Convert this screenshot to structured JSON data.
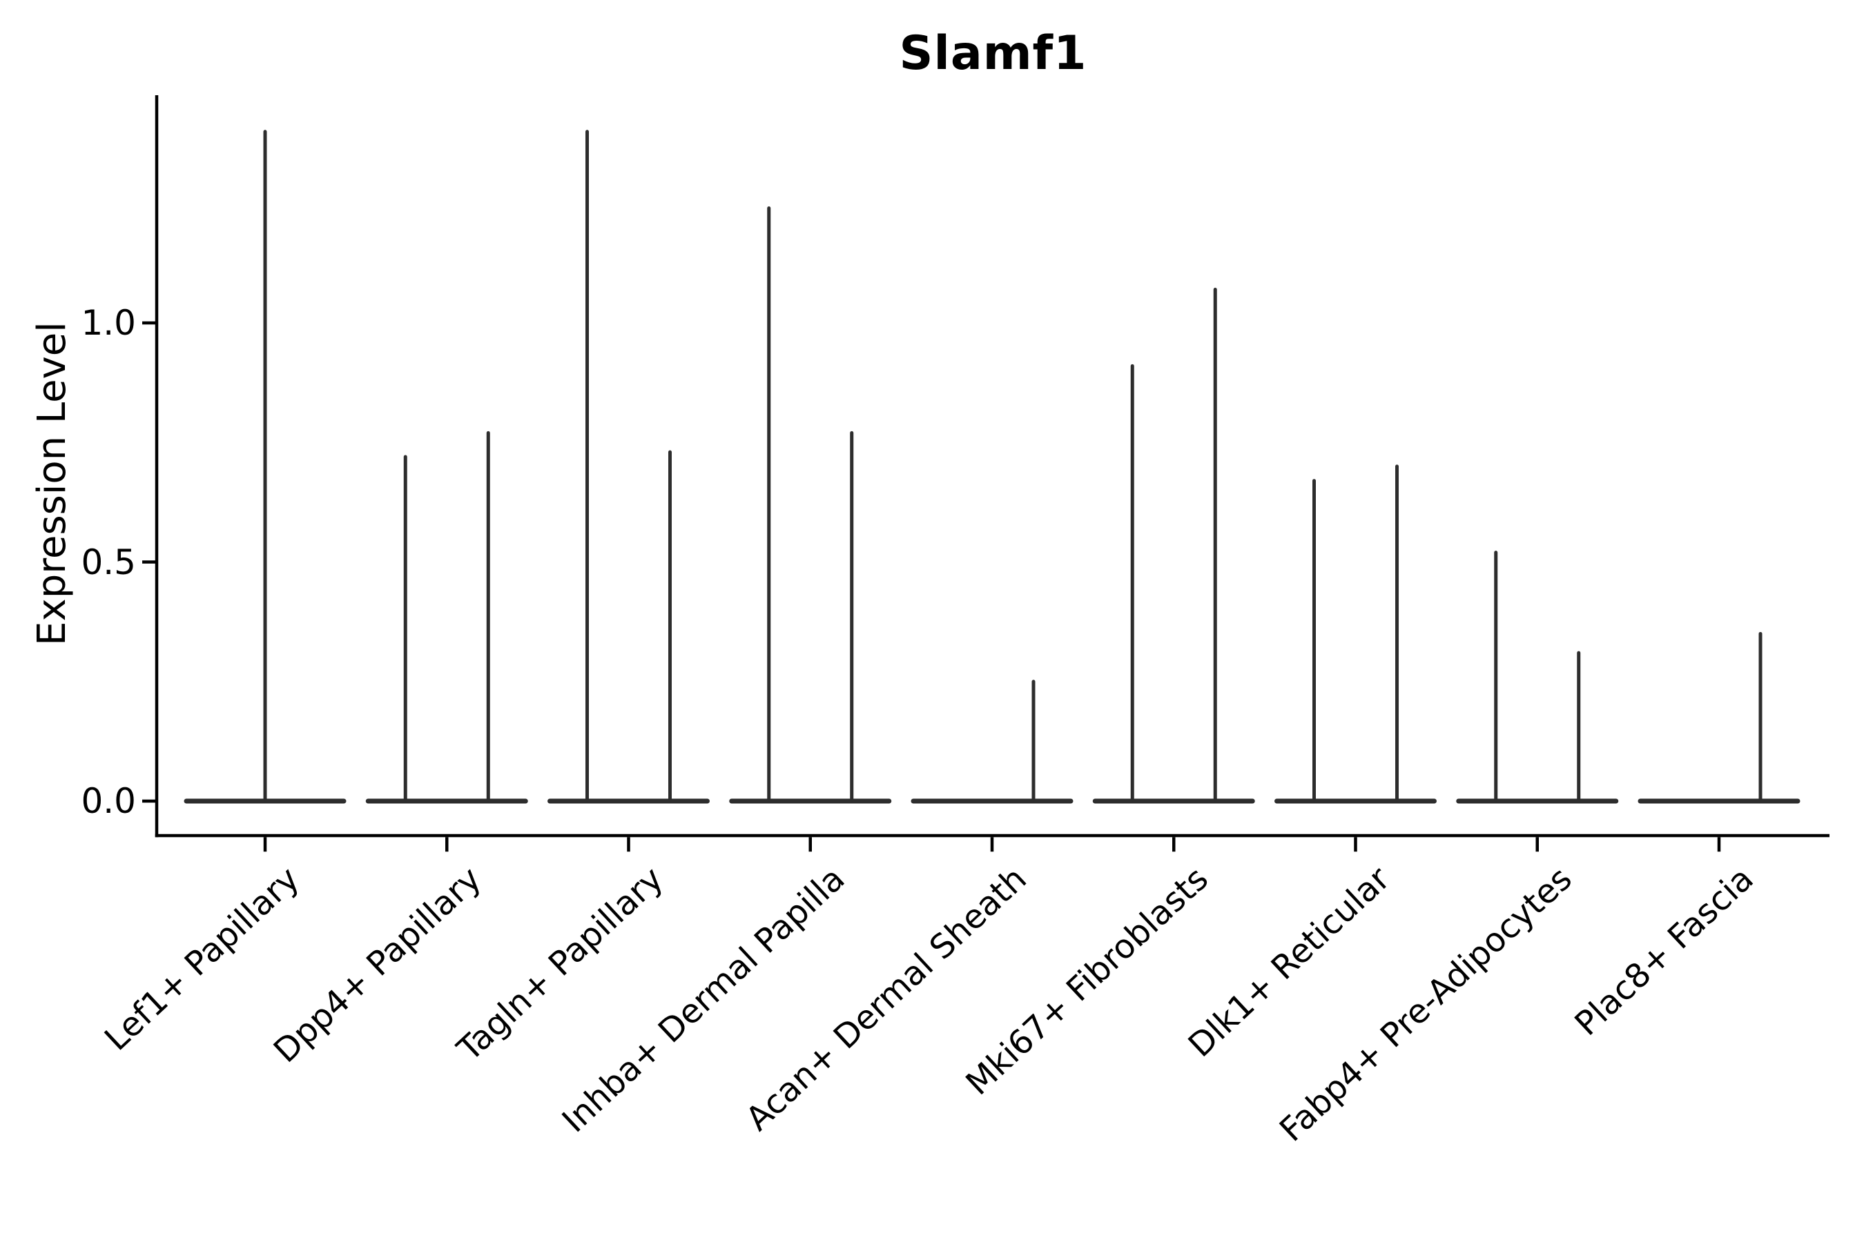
{
  "chart_data": {
    "type": "violin",
    "title": "Slamf1",
    "ylabel": "Expression Level",
    "xlabel": "",
    "ytick_labels": [
      "0.0",
      "0.5",
      "1.0"
    ],
    "ytick_values": [
      0.0,
      0.5,
      1.0
    ],
    "ylim": [
      -0.08,
      1.47
    ],
    "grid": false,
    "legend": "none",
    "violin_style": "flat base at zero with thin tail spike to max",
    "categories": [
      "Lef1+ Papillary",
      "Dpp4+ Papillary",
      "Tagln+ Papillary",
      "Inhba+ Dermal Papilla",
      "Acan+ Dermal Sheath",
      "Mki67+ Fibroblasts",
      "Dlk1+ Reticular",
      "Fabp4+ Pre-Adipocytes",
      "Plac8+ Fascia"
    ],
    "series": [
      {
        "category": "Lef1+ Papillary",
        "violins": [
          {
            "position": "center",
            "max_expression": 1.4
          }
        ]
      },
      {
        "category": "Dpp4+ Papillary",
        "violins": [
          {
            "position": "left",
            "max_expression": 0.72
          },
          {
            "position": "right",
            "max_expression": 0.77
          }
        ]
      },
      {
        "category": "Tagln+ Papillary",
        "violins": [
          {
            "position": "left",
            "max_expression": 1.4
          },
          {
            "position": "right",
            "max_expression": 0.73
          }
        ]
      },
      {
        "category": "Inhba+ Dermal Papilla",
        "violins": [
          {
            "position": "left",
            "max_expression": 1.24
          },
          {
            "position": "right",
            "max_expression": 0.77
          }
        ]
      },
      {
        "category": "Acan+ Dermal Sheath",
        "violins": [
          {
            "position": "left",
            "max_expression": 0.0
          },
          {
            "position": "right",
            "max_expression": 0.25
          }
        ]
      },
      {
        "category": "Mki67+ Fibroblasts",
        "violins": [
          {
            "position": "left",
            "max_expression": 0.91
          },
          {
            "position": "right",
            "max_expression": 1.07
          }
        ]
      },
      {
        "category": "Dlk1+ Reticular",
        "violins": [
          {
            "position": "left",
            "max_expression": 0.67
          },
          {
            "position": "right",
            "max_expression": 0.7
          }
        ]
      },
      {
        "category": "Fabp4+ Pre-Adipocytes",
        "violins": [
          {
            "position": "left",
            "max_expression": 0.52
          },
          {
            "position": "right",
            "max_expression": 0.31
          }
        ]
      },
      {
        "category": "Plac8+ Fascia",
        "violins": [
          {
            "position": "left",
            "max_expression": 0.0
          },
          {
            "position": "right",
            "max_expression": 0.35
          }
        ]
      }
    ],
    "colors": {
      "violin": "#2d2d2d",
      "axis": "#000000",
      "text": "#000000",
      "background": "#ffffff"
    }
  }
}
